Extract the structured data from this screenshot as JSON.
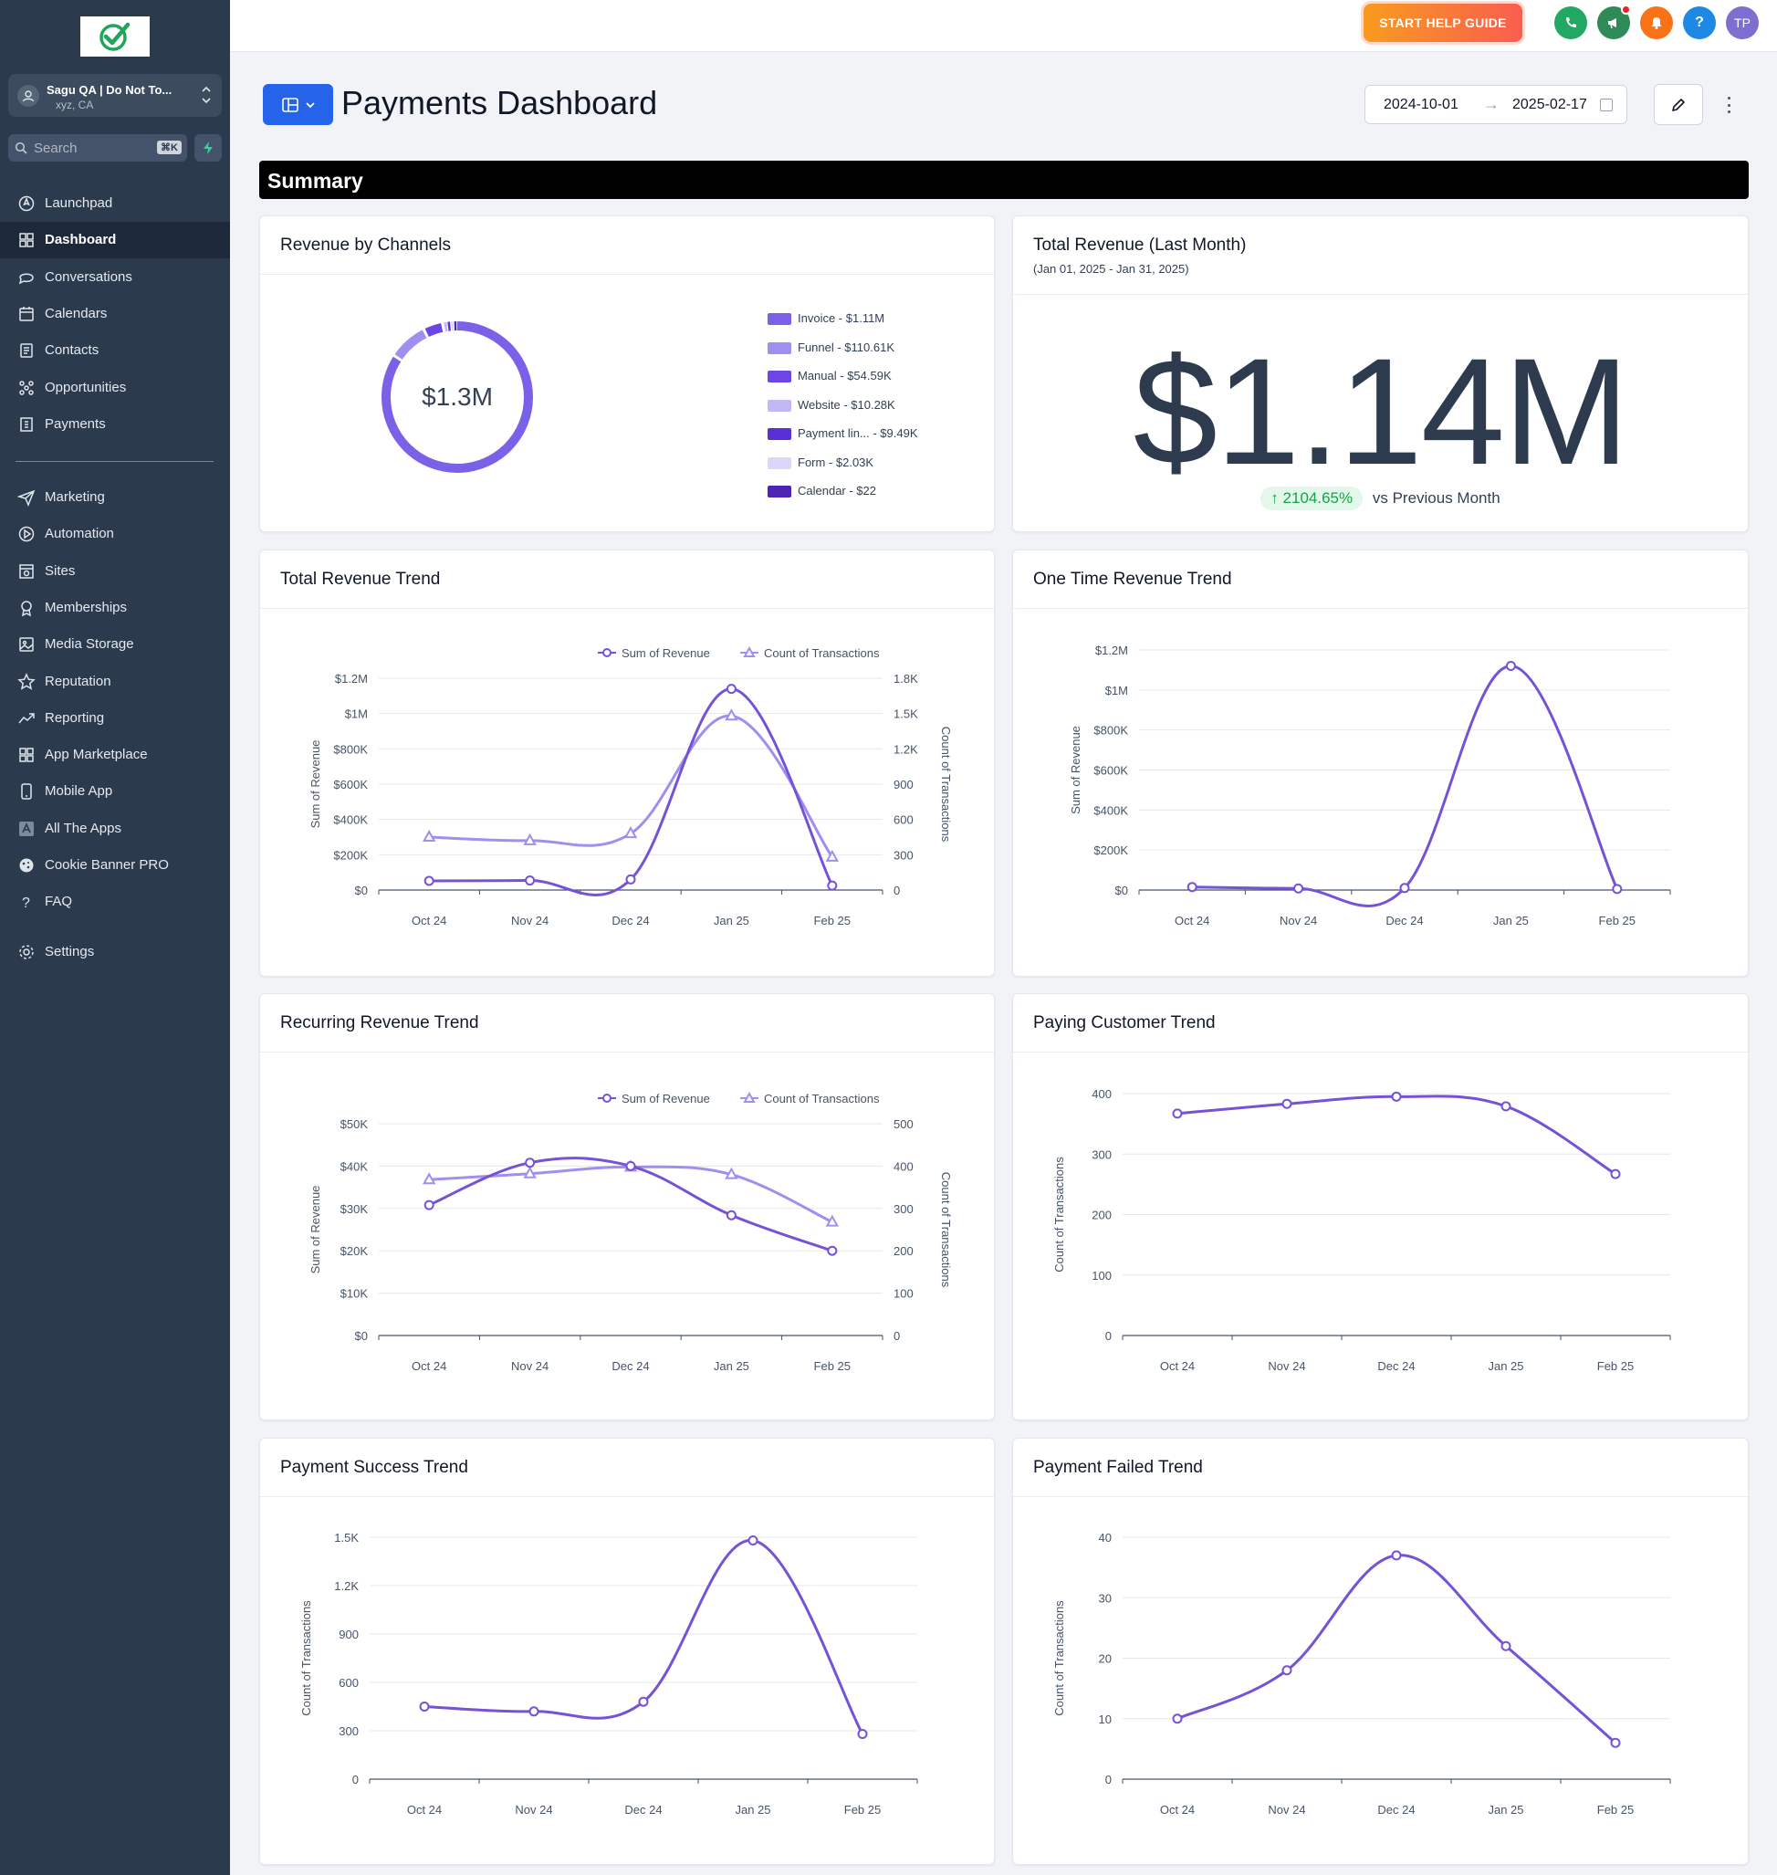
{
  "sidebar": {
    "account_name": "Sagu QA | Do Not To...",
    "account_location": "xyz, CA",
    "search_placeholder": "Search",
    "search_shortcut": "⌘K",
    "nav_main": [
      {
        "label": "Launchpad",
        "icon": "rocket-icon"
      },
      {
        "label": "Dashboard",
        "icon": "grid-icon",
        "active": true
      },
      {
        "label": "Conversations",
        "icon": "chat-icon"
      },
      {
        "label": "Calendars",
        "icon": "calendar-icon"
      },
      {
        "label": "Contacts",
        "icon": "contacts-icon"
      },
      {
        "label": "Opportunities",
        "icon": "opportunities-icon"
      },
      {
        "label": "Payments",
        "icon": "payments-icon"
      }
    ],
    "nav_secondary": [
      {
        "label": "Marketing",
        "icon": "send-icon"
      },
      {
        "label": "Automation",
        "icon": "automation-icon"
      },
      {
        "label": "Sites",
        "icon": "sites-icon"
      },
      {
        "label": "Memberships",
        "icon": "memberships-icon"
      },
      {
        "label": "Media Storage",
        "icon": "image-icon"
      },
      {
        "label": "Reputation",
        "icon": "star-icon"
      },
      {
        "label": "Reporting",
        "icon": "trend-icon"
      },
      {
        "label": "App Marketplace",
        "icon": "grid-icon"
      },
      {
        "label": "Mobile App",
        "icon": "phone-icon"
      },
      {
        "label": "All The Apps",
        "icon": "apps-icon"
      },
      {
        "label": "Cookie Banner PRO",
        "icon": "cookie-icon"
      },
      {
        "label": "FAQ",
        "icon": "question-icon"
      }
    ],
    "settings": {
      "label": "Settings",
      "icon": "gear-icon"
    }
  },
  "topbar": {
    "help_button": "START HELP GUIDE",
    "user_initials": "TP",
    "help_icon": "?",
    "colors": {
      "phone": "#22a863",
      "megaphone": "#2e8b57",
      "bell": "#f97316",
      "help": "#1e88e5",
      "avatar": "#7c6fcf"
    }
  },
  "page": {
    "title": "Payments Dashboard",
    "date_from": "2024-10-01",
    "date_to": "2025-02-17",
    "date_arrow": "→",
    "summary_label": "Summary"
  },
  "cards": {
    "revenue_by_channels": {
      "title": "Revenue by Channels",
      "total": "$1.3M",
      "legend": [
        {
          "label": "Invoice - $1.11M",
          "color": "#7b61e8",
          "value": 1110000
        },
        {
          "label": "Funnel - $110.61K",
          "color": "#a08ef0",
          "value": 110610
        },
        {
          "label": "Manual - $54.59K",
          "color": "#6b46e5",
          "value": 54590
        },
        {
          "label": "Website - $10.28K",
          "color": "#c3b7f5",
          "value": 10280
        },
        {
          "label": "Payment lin... - $9.49K",
          "color": "#5a2fd6",
          "value": 9490
        },
        {
          "label": "Form - $2.03K",
          "color": "#ddd6fb",
          "value": 2030
        },
        {
          "label": "Calendar - $22",
          "color": "#4c25b5",
          "value": 22
        }
      ]
    },
    "total_revenue_last_month": {
      "title": "Total Revenue (Last Month)",
      "subtitle": "(Jan 01, 2025 - Jan 31, 2025)",
      "value": "$1.14M",
      "change": "↑ 2104.65%",
      "change_label": "vs Previous Month"
    }
  },
  "chart_data": [
    {
      "id": "total_revenue_trend",
      "title": "Total Revenue Trend",
      "type": "line",
      "categories": [
        "Oct 24",
        "Nov 24",
        "Dec 24",
        "Jan 25",
        "Feb 25"
      ],
      "series": [
        {
          "name": "Sum of Revenue",
          "axis": "left",
          "values": [
            52000,
            54000,
            60000,
            1140000,
            25000
          ]
        },
        {
          "name": "Count of Transactions",
          "axis": "right",
          "values": [
            450,
            420,
            480,
            1480,
            280
          ]
        }
      ],
      "ylabel": "Sum of Revenue",
      "y2label": "Count of Transactions",
      "ylim": [
        0,
        1200000
      ],
      "y2lim": [
        0,
        1800
      ],
      "yticks": [
        "$0",
        "$200K",
        "$400K",
        "$600K",
        "$800K",
        "$1M",
        "$1.2M"
      ],
      "y2ticks": [
        "0",
        "300",
        "600",
        "900",
        "1.2K",
        "1.5K",
        "1.8K"
      ],
      "legend": "top-center"
    },
    {
      "id": "one_time_revenue_trend",
      "title": "One Time Revenue Trend",
      "type": "line",
      "categories": [
        "Oct 24",
        "Nov 24",
        "Dec 24",
        "Jan 25",
        "Feb 25"
      ],
      "series": [
        {
          "name": "Sum of Revenue",
          "values": [
            15000,
            8000,
            10000,
            1120000,
            5000
          ]
        }
      ],
      "ylabel": "Sum of Revenue",
      "ylim": [
        0,
        1200000
      ],
      "yticks": [
        "$0",
        "$200K",
        "$400K",
        "$600K",
        "$800K",
        "$1M",
        "$1.2M"
      ]
    },
    {
      "id": "recurring_revenue_trend",
      "title": "Recurring Revenue Trend",
      "type": "line",
      "categories": [
        "Oct 24",
        "Nov 24",
        "Dec 24",
        "Jan 25",
        "Feb 25"
      ],
      "series": [
        {
          "name": "Sum of Revenue",
          "axis": "left",
          "values": [
            30800,
            40800,
            40000,
            28400,
            20000
          ]
        },
        {
          "name": "Count of Transactions",
          "axis": "right",
          "values": [
            368,
            382,
            398,
            380,
            268
          ]
        }
      ],
      "ylabel": "Sum of Revenue",
      "y2label": "Count of Transactions",
      "ylim": [
        0,
        50000
      ],
      "y2lim": [
        0,
        500
      ],
      "yticks": [
        "$0",
        "$10K",
        "$20K",
        "$30K",
        "$40K",
        "$50K"
      ],
      "y2ticks": [
        "0",
        "100",
        "200",
        "300",
        "400",
        "500"
      ],
      "legend": "top-center"
    },
    {
      "id": "paying_customer_trend",
      "title": "Paying Customer Trend",
      "type": "line",
      "categories": [
        "Oct 24",
        "Nov 24",
        "Dec 24",
        "Jan 25",
        "Feb 25"
      ],
      "series": [
        {
          "name": "Count of Transactions",
          "values": [
            367,
            383,
            395,
            379,
            267
          ]
        }
      ],
      "ylabel": "Count of Transactions",
      "ylim": [
        0,
        400
      ],
      "yticks": [
        "0",
        "100",
        "200",
        "300",
        "400"
      ]
    },
    {
      "id": "payment_success_trend",
      "title": "Payment Success Trend",
      "type": "line",
      "categories": [
        "Oct 24",
        "Nov 24",
        "Dec 24",
        "Jan 25",
        "Feb 25"
      ],
      "series": [
        {
          "name": "Count of Transactions",
          "values": [
            450,
            420,
            480,
            1480,
            280
          ]
        }
      ],
      "ylabel": "Count of Transactions",
      "ylim": [
        0,
        1500
      ],
      "yticks": [
        "0",
        "300",
        "600",
        "900",
        "1.2K",
        "1.5K"
      ]
    },
    {
      "id": "payment_failed_trend",
      "title": "Payment Failed Trend",
      "type": "line",
      "categories": [
        "Oct 24",
        "Nov 24",
        "Dec 24",
        "Jan 25",
        "Feb 25"
      ],
      "series": [
        {
          "name": "Count of Transactions",
          "values": [
            10,
            18,
            37,
            22,
            6
          ]
        }
      ],
      "ylabel": "Count of Transactions",
      "ylim": [
        0,
        40
      ],
      "yticks": [
        "0",
        "10",
        "20",
        "30",
        "40"
      ]
    }
  ]
}
